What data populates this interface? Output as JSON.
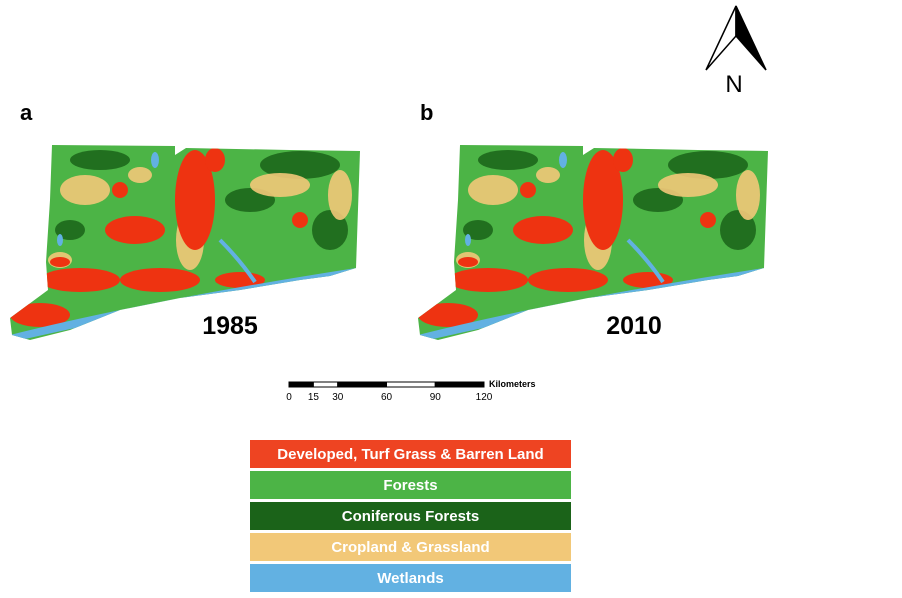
{
  "panels": [
    {
      "label": "a",
      "year": "1985"
    },
    {
      "label": "b",
      "year": "2010"
    }
  ],
  "north_arrow": {
    "label": "N"
  },
  "scale_bar": {
    "unit": "Kilometers",
    "ticks": [
      0,
      15,
      30,
      60,
      90,
      120
    ]
  },
  "legend": [
    {
      "label": "Developed, Turf Grass & Barren Land",
      "color": "#ee4422"
    },
    {
      "label": "Forests",
      "color": "#4cb446"
    },
    {
      "label": "Coniferous Forests",
      "color": "#1b6319"
    },
    {
      "label": "Cropland & Grassland",
      "color": "#f2c878"
    },
    {
      "label": "Wetlands",
      "color": "#62b1e2"
    }
  ]
}
